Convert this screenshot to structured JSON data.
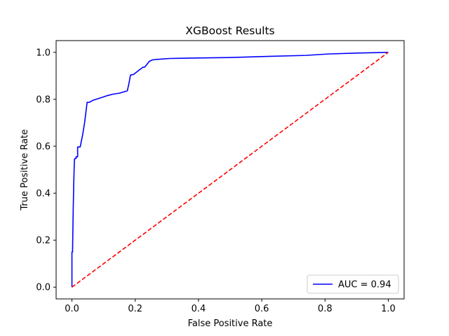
{
  "chart_data": {
    "type": "line",
    "title": "XGBoost Results",
    "xlabel": "False Positive Rate",
    "ylabel": "True Positive Rate",
    "xlim": [
      -0.05,
      1.05
    ],
    "ylim": [
      -0.05,
      1.05
    ],
    "xticks": [
      0.0,
      0.2,
      0.4,
      0.6,
      0.8,
      1.0
    ],
    "yticks": [
      0.0,
      0.2,
      0.4,
      0.6,
      0.8,
      1.0
    ],
    "xtick_labels": [
      "0.0",
      "0.2",
      "0.4",
      "0.6",
      "0.8",
      "1.0"
    ],
    "ytick_labels": [
      "0.0",
      "0.2",
      "0.4",
      "0.6",
      "0.8",
      "1.0"
    ],
    "grid": false,
    "legend_position": "lower-right",
    "series": [
      {
        "name": "AUC = 0.94",
        "color": "#0000ff",
        "style": "solid",
        "x": [
          0.0,
          0.0,
          0.002,
          0.002,
          0.004,
          0.006,
          0.008,
          0.01,
          0.013,
          0.013,
          0.018,
          0.018,
          0.026,
          0.034,
          0.04,
          0.048,
          0.055,
          0.065,
          0.09,
          0.11,
          0.13,
          0.15,
          0.175,
          0.18,
          0.185,
          0.195,
          0.21,
          0.225,
          0.23,
          0.245,
          0.255,
          0.27,
          0.31,
          0.4,
          0.5,
          0.6,
          0.74,
          0.81,
          0.9,
          1.0
        ],
        "y": [
          0.0,
          0.15,
          0.15,
          0.16,
          0.33,
          0.46,
          0.545,
          0.548,
          0.548,
          0.555,
          0.555,
          0.597,
          0.597,
          0.65,
          0.7,
          0.787,
          0.787,
          0.795,
          0.806,
          0.815,
          0.822,
          0.826,
          0.836,
          0.866,
          0.903,
          0.906,
          0.922,
          0.937,
          0.937,
          0.962,
          0.968,
          0.97,
          0.974,
          0.976,
          0.978,
          0.982,
          0.987,
          0.993,
          0.997,
          1.0
        ]
      },
      {
        "name": "",
        "color": "#ff0000",
        "style": "dashed",
        "x": [
          0.0,
          1.0
        ],
        "y": [
          0.0,
          1.0
        ]
      }
    ],
    "legend_entries": [
      {
        "label": "AUC = 0.94",
        "color": "#0000ff"
      }
    ]
  }
}
